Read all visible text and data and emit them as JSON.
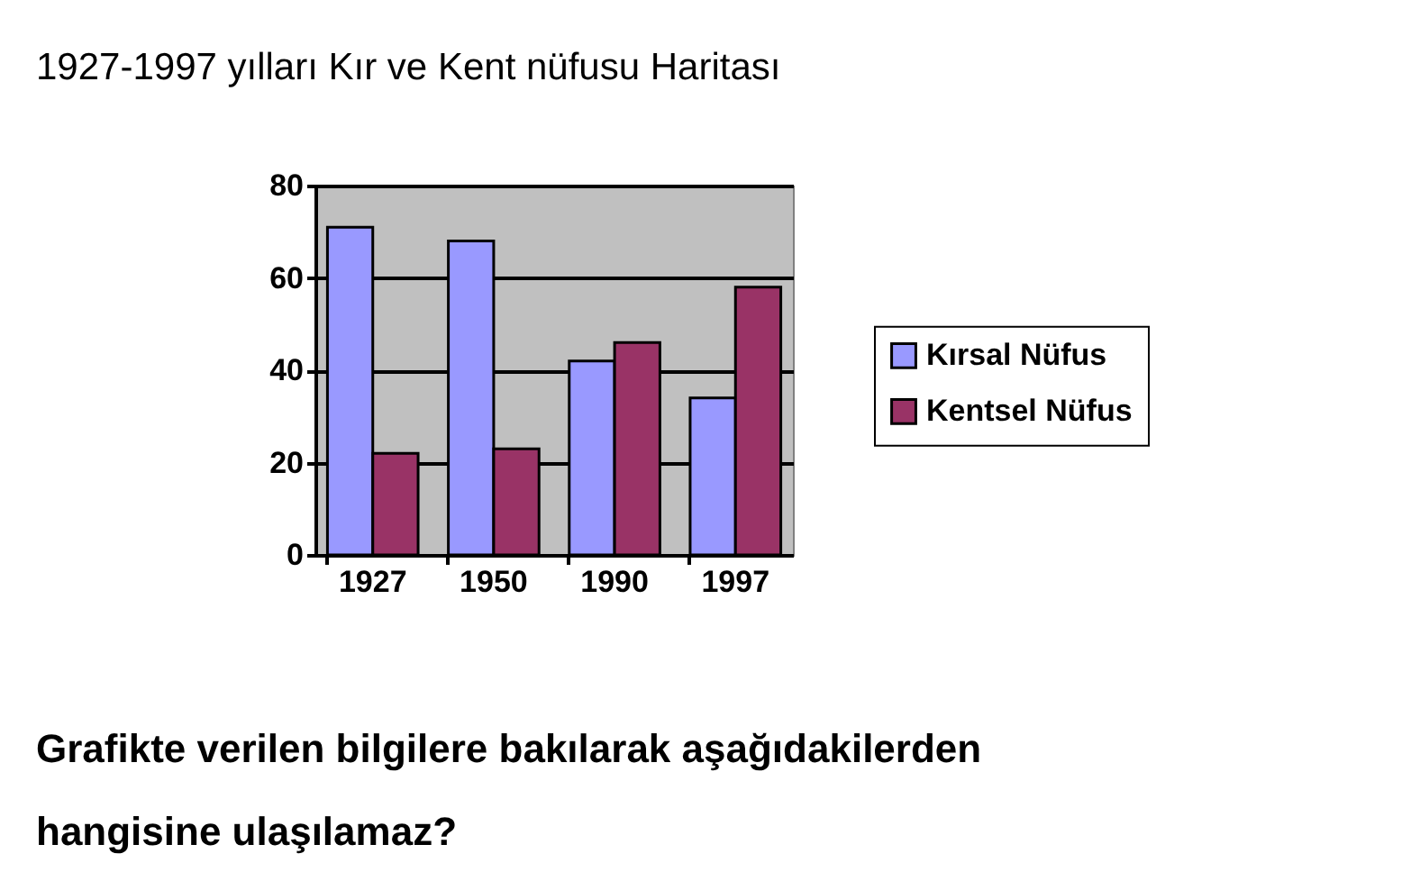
{
  "chart_data": {
    "type": "bar",
    "title": "1927-1997 yılları Kır ve Kent nüfusu Haritası",
    "categories": [
      "1927",
      "1950",
      "1990",
      "1997"
    ],
    "series": [
      {
        "name": "Kırsal Nüfus",
        "color": "#9999ff",
        "values": [
          71,
          68,
          42,
          34
        ]
      },
      {
        "name": "Kentsel Nüfus",
        "color": "#993366",
        "values": [
          22,
          23,
          46,
          58
        ]
      }
    ],
    "ylim": [
      0,
      80
    ],
    "yticks": [
      0,
      20,
      40,
      60,
      80
    ],
    "grid": "y",
    "legend": "right",
    "annotations": [
      "Grafikte verilen bilgilere bakılarak aşağıdakilerden",
      "hangisine ulaşılamaz?"
    ]
  }
}
